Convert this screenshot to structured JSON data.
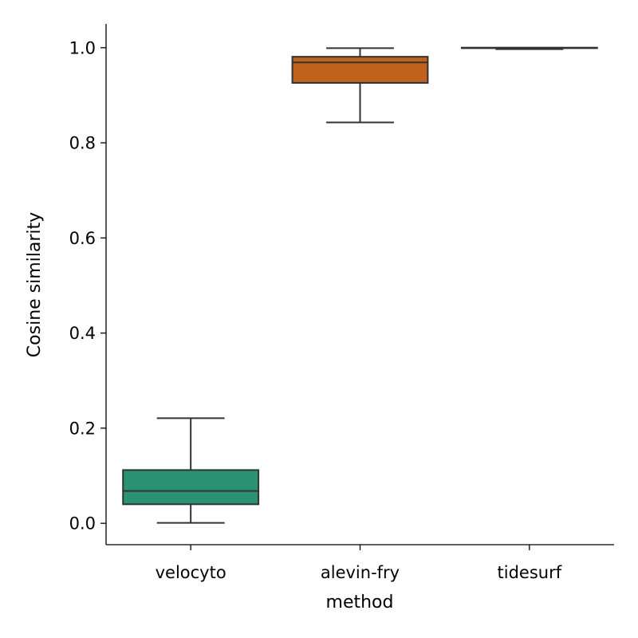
{
  "chart_data": {
    "type": "box",
    "title": "",
    "xlabel": "method",
    "ylabel": "Cosine similarity",
    "ylim": [
      -0.045,
      1.05
    ],
    "yticks": [
      0.0,
      0.2,
      0.4,
      0.6,
      0.8,
      1.0
    ],
    "ytick_labels": [
      "0.0",
      "0.2",
      "0.4",
      "0.6",
      "0.8",
      "1.0"
    ],
    "grid": false,
    "categories": [
      "velocyto",
      "alevin-fry",
      "tidesurf"
    ],
    "boxes": [
      {
        "category": "velocyto",
        "whisker_low": 0.001,
        "q1": 0.04,
        "median": 0.068,
        "q3": 0.112,
        "whisker_high": 0.221,
        "color": "#2a9273"
      },
      {
        "category": "alevin-fry",
        "whisker_low": 0.843,
        "q1": 0.926,
        "median": 0.969,
        "q3": 0.981,
        "whisker_high": 0.999,
        "color": "#c0621d"
      },
      {
        "category": "tidesurf",
        "whisker_low": 0.997,
        "q1": 0.999,
        "median": 1.0,
        "q3": 1.0,
        "whisker_high": 1.0,
        "color": "#7570b3"
      }
    ]
  }
}
